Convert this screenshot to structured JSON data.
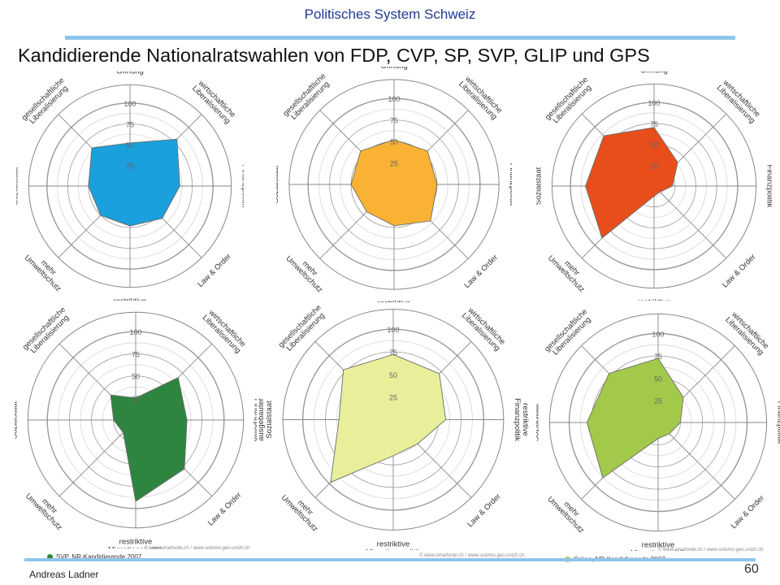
{
  "header": {
    "title": "Politisches System Schweiz"
  },
  "slide": {
    "title": "Kandidierende Nationalratswahlen von FDP, CVP, SP, SVP, GLIP und GPS"
  },
  "footer": {
    "author": "Andreas Ladner",
    "page": "60"
  },
  "colors": {
    "header_text": "#1f3a93",
    "accent_rule": "#8ec5ea"
  },
  "chart_data": [
    {
      "type": "radar",
      "fill": "#1aa0dc",
      "axes": [
        "aussenpolitische Öffnung",
        "wirtschaftliche Liberalisierung",
        "restriktive Finanzpolitik",
        "Law & Order",
        "restriktive Migrationspolitik",
        "mehr Umweltschutz",
        "ausgebauter Sozialstaat",
        "gesellschaftliche Liberalisierung"
      ],
      "rlim": [
        0,
        100
      ],
      "ticks": [
        "25",
        "50",
        "75",
        "100"
      ],
      "values": [
        52,
        80,
        60,
        55,
        48,
        50,
        50,
        65
      ]
    },
    {
      "type": "radar",
      "fill": "#f9b233",
      "axes": [
        "aussenpolitische Öffnung",
        "wirtschaftliche Liberalisierung",
        "restriktive Finanzpolitik",
        "Law & Order",
        "restriktive Migrationspolitik",
        "mehr Umweltschutz",
        "ausgebauter Sozialstaat",
        "gesellschaftliche Liberalisierung"
      ],
      "rlim": [
        0,
        100
      ],
      "ticks": [
        "25",
        "50",
        "75",
        "100"
      ],
      "values": [
        52,
        55,
        50,
        60,
        48,
        45,
        50,
        55
      ]
    },
    {
      "type": "radar",
      "fill": "#e84e1b",
      "axes": [
        "aussenpolitische Öffnung",
        "wirtschaftliche Liberalisierung",
        "restriktive Finanzpolitik",
        "Law & Order",
        "restriktive Migrationspolitik",
        "mehr Umweltschutz",
        "ausgebauter Sozialstaat",
        "gesellschaftliche Liberalisierung"
      ],
      "rlim": [
        0,
        100
      ],
      "ticks": [
        "25",
        "50",
        "75",
        "100"
      ],
      "values": [
        70,
        40,
        22,
        10,
        12,
        88,
        82,
        85
      ]
    },
    {
      "type": "radar",
      "fill": "#2e8540",
      "axes": [
        "aussenpolitische Öffnung",
        "wirtschaftliche Liberalisierung",
        "restriktive Finanzpolitik",
        "Law & Order",
        "restriktive Migrationspolitik",
        "mehr Umweltschutz",
        "ausgebauter Sozialstaat",
        "gesellschaftliche Liberalisierung"
      ],
      "rlim": [
        0,
        100
      ],
      "ticks": [
        "25",
        "50",
        "75",
        "100"
      ],
      "values": [
        25,
        68,
        58,
        78,
        92,
        20,
        25,
        40
      ]
    },
    {
      "type": "radar",
      "fill": "#e8ee9a",
      "axes": [
        "aussenpolitische Öffnung",
        "wirtschaftliche Liberalisierung",
        "restriktive Finanzpolitik",
        "Law & Order",
        "restriktive Migrationspolitik",
        "mehr Umweltschutz",
        "ausgebauter Sozialstaat",
        "gesellschaftliche Liberalisierung"
      ],
      "rlim": [
        0,
        100
      ],
      "ticks": [
        "25",
        "50",
        "75",
        "100"
      ],
      "values": [
        72,
        72,
        58,
        38,
        40,
        98,
        60,
        78
      ]
    },
    {
      "type": "radar",
      "fill": "#a3c94a",
      "axes": [
        "aussenpolitische Öffnung",
        "wirtschaftliche Liberalisierung",
        "restriktive Finanzpolitik",
        "Law & Order",
        "restriktive Migrationspolitik",
        "mehr Umweltschutz",
        "ausgebauter Sozialstaat",
        "gesellschaftliche Liberalisierung"
      ],
      "rlim": [
        0,
        100
      ],
      "ticks": [
        "25",
        "50",
        "75",
        "100"
      ],
      "values": [
        72,
        40,
        25,
        18,
        18,
        88,
        80,
        78
      ]
    }
  ],
  "captions": {
    "credit": "© www.smartvote.ch / www.sotomo.geo.unizh.ch",
    "svp_caption": "SVP, NR-Kandidierende 2007",
    "gps_caption": "Grüne, NR-Kandidierende 2007"
  }
}
